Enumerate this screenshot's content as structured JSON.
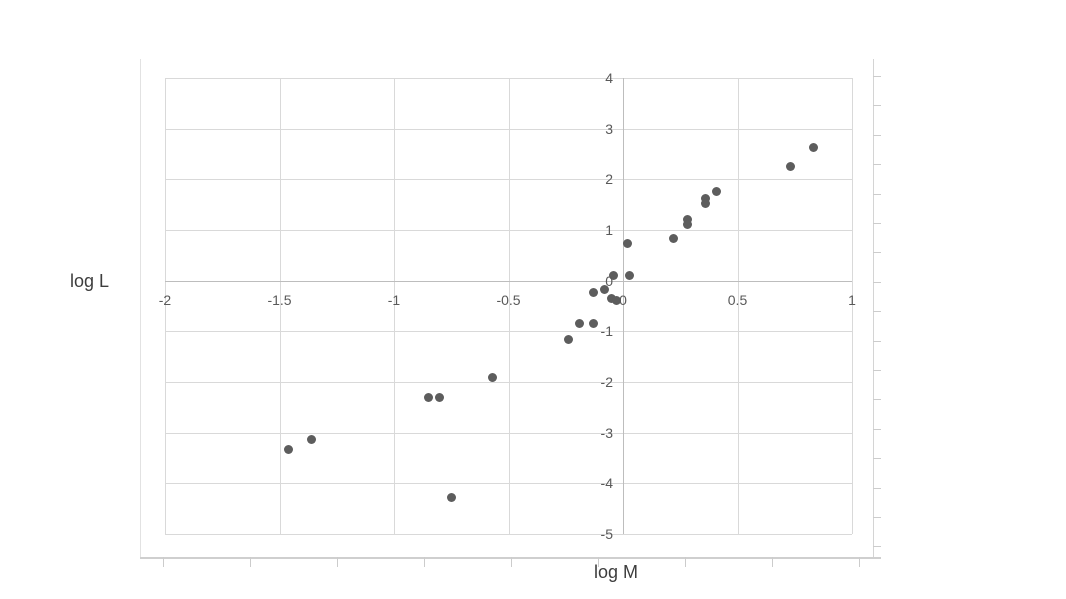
{
  "chart_data": {
    "type": "scatter",
    "title": "",
    "xlabel": "log M",
    "ylabel": "log L",
    "xlim": [
      -2,
      1
    ],
    "ylim": [
      -5,
      4
    ],
    "x_tick_step": 0.5,
    "y_tick_step": 1,
    "x_tick_labels": [
      "-2",
      "-1.5",
      "-1",
      "-0.5",
      "0",
      "0.5",
      "1"
    ],
    "y_tick_labels": [
      "4",
      "3",
      "2",
      "1",
      "0",
      "-1",
      "-2",
      "-3",
      "-4",
      "-5"
    ],
    "grid": true,
    "legend": false,
    "axes_cross_at": [
      0,
      0
    ],
    "marker_color": "#5d5d5d",
    "gridline_color": "#d9d9d9",
    "axis_line_color": "#bdbdbd",
    "tick_label_color": "#595959",
    "axis_title_color": "#3d3d3d",
    "points": [
      {
        "x": 0.83,
        "y": 2.63
      },
      {
        "x": 0.73,
        "y": 2.25
      },
      {
        "x": 0.41,
        "y": 1.76
      },
      {
        "x": 0.36,
        "y": 1.62
      },
      {
        "x": 0.36,
        "y": 1.52
      },
      {
        "x": 0.28,
        "y": 1.21
      },
      {
        "x": 0.28,
        "y": 1.1
      },
      {
        "x": 0.22,
        "y": 0.84
      },
      {
        "x": 0.02,
        "y": 0.73
      },
      {
        "x": -0.04,
        "y": 0.11
      },
      {
        "x": 0.03,
        "y": 0.11
      },
      {
        "x": -0.13,
        "y": -0.23
      },
      {
        "x": -0.08,
        "y": -0.18
      },
      {
        "x": -0.05,
        "y": -0.35
      },
      {
        "x": -0.03,
        "y": -0.4
      },
      {
        "x": -0.19,
        "y": -0.84
      },
      {
        "x": -0.13,
        "y": -0.84
      },
      {
        "x": -0.24,
        "y": -1.17
      },
      {
        "x": -0.57,
        "y": -1.91
      },
      {
        "x": -0.85,
        "y": -2.3
      },
      {
        "x": -0.8,
        "y": -2.3
      },
      {
        "x": -1.36,
        "y": -3.14
      },
      {
        "x": -1.46,
        "y": -3.33
      },
      {
        "x": -0.75,
        "y": -4.28
      }
    ]
  }
}
